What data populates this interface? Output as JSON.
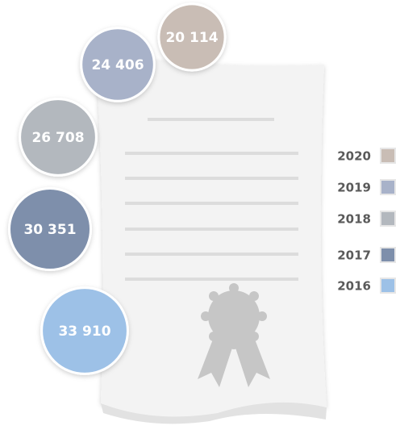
{
  "chart_data": {
    "type": "bubble",
    "categories": [
      "2020",
      "2019",
      "2018",
      "2017",
      "2016"
    ],
    "values": [
      20114,
      24406,
      26708,
      30351,
      33910
    ],
    "value_labels": [
      "20 114",
      "24 406",
      "26 708",
      "30 351",
      "33 910"
    ],
    "colors": [
      "#c9bdb5",
      "#a8b2c9",
      "#b3b8be",
      "#7e8fab",
      "#9dc1e7"
    ],
    "legend": "right"
  }
}
